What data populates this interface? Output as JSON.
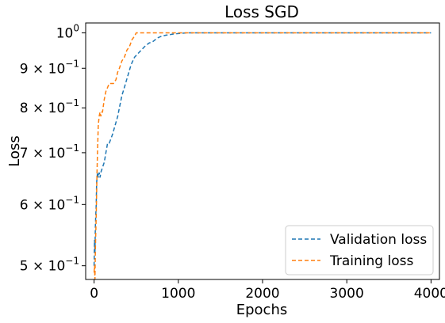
{
  "chart_data": {
    "type": "line",
    "title": "Loss SGD",
    "xlabel": "Epochs",
    "ylabel": "Loss",
    "xlim": [
      -100,
      4100
    ],
    "ylim": [
      0.48,
      1.03
    ],
    "yscale": "log",
    "x_ticks": [
      0,
      1000,
      2000,
      3000,
      4000
    ],
    "x_tick_labels": [
      "0",
      "1000",
      "2000",
      "3000",
      "4000"
    ],
    "y_ticks": [
      0.5,
      0.6,
      0.7,
      0.8,
      0.9,
      1.0
    ],
    "y_tick_labels": [
      {
        "base": "5",
        "mid": " × 10",
        "exp": "−1"
      },
      {
        "base": "6",
        "mid": " × 10",
        "exp": "−1"
      },
      {
        "base": "7",
        "mid": " × 10",
        "exp": "−1"
      },
      {
        "base": "8",
        "mid": " × 10",
        "exp": "−1"
      },
      {
        "base": "9",
        "mid": " × 10",
        "exp": "−1"
      },
      {
        "base": "10",
        "mid": "",
        "exp": "0"
      }
    ],
    "grid": false,
    "legend_position": "bottom-right",
    "series": [
      {
        "name": "Validation loss",
        "color": "#1f77b4",
        "dash": "dashed",
        "x": [
          0,
          5,
          10,
          15,
          20,
          25,
          30,
          40,
          50,
          60,
          70,
          80,
          100,
          120,
          140,
          160,
          180,
          200,
          220,
          250,
          280,
          300,
          330,
          360,
          400,
          440,
          480,
          520,
          560,
          600,
          650,
          700,
          750,
          800,
          850,
          900,
          950,
          1000,
          1050,
          1100,
          1150,
          1200,
          1300,
          1500,
          2000,
          2500,
          3000,
          3500,
          4000
        ],
        "y": [
          0.5,
          0.54,
          0.52,
          0.56,
          0.58,
          0.6,
          0.64,
          0.66,
          0.65,
          0.66,
          0.65,
          0.66,
          0.67,
          0.68,
          0.7,
          0.72,
          0.72,
          0.73,
          0.74,
          0.76,
          0.78,
          0.8,
          0.83,
          0.85,
          0.88,
          0.91,
          0.93,
          0.94,
          0.95,
          0.96,
          0.97,
          0.975,
          0.985,
          0.99,
          0.993,
          0.995,
          0.997,
          0.998,
          0.999,
          1.0,
          1.0,
          1.0,
          1.0,
          1.0,
          1.0,
          1.0,
          1.0,
          1.0,
          1.0
        ]
      },
      {
        "name": "Training loss",
        "color": "#ff7f0e",
        "dash": "dashed",
        "x": [
          0,
          5,
          10,
          15,
          20,
          25,
          30,
          35,
          40,
          50,
          60,
          70,
          80,
          90,
          100,
          120,
          140,
          160,
          180,
          200,
          230,
          260,
          280,
          300,
          330,
          360,
          390,
          420,
          450,
          480,
          500,
          550,
          600,
          700,
          800,
          1000,
          1500,
          2000,
          3000,
          4000
        ],
        "y": [
          0.49,
          0.5,
          0.48,
          0.52,
          0.55,
          0.58,
          0.62,
          0.66,
          0.7,
          0.76,
          0.78,
          0.79,
          0.78,
          0.79,
          0.79,
          0.82,
          0.84,
          0.85,
          0.86,
          0.86,
          0.86,
          0.87,
          0.89,
          0.9,
          0.92,
          0.93,
          0.95,
          0.96,
          0.98,
          0.99,
          1.0,
          1.0,
          1.0,
          1.0,
          1.0,
          1.0,
          1.0,
          1.0,
          1.0,
          1.0
        ]
      }
    ]
  }
}
